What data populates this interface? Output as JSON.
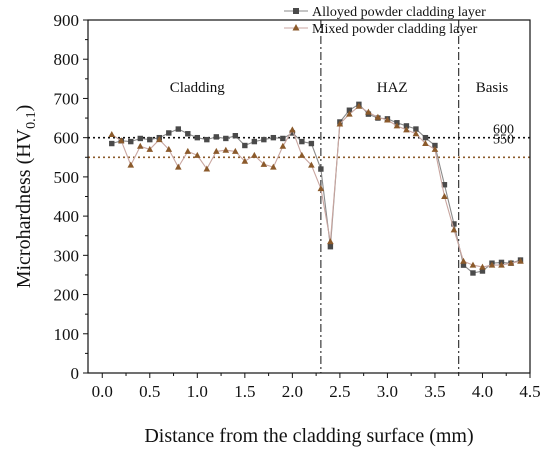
{
  "chart_data": {
    "type": "line",
    "xlabel": "Distance from the cladding surface (mm)",
    "ylabel_main": "Microhardness (HV",
    "ylabel_sub": "0.1",
    "ylabel_close": ")",
    "xlim": [
      -0.15,
      4.5
    ],
    "ylim": [
      0,
      900
    ],
    "xticks": [
      "0.0",
      "0.5",
      "1.0",
      "1.5",
      "2.0",
      "2.5",
      "3.0",
      "3.5",
      "4.0",
      "4.5"
    ],
    "yticks": [
      "0",
      "100",
      "200",
      "300",
      "400",
      "500",
      "600",
      "700",
      "800",
      "900"
    ],
    "regions": [
      {
        "label": "Cladding",
        "x_center": 1.0
      },
      {
        "label": "HAZ",
        "x_center": 3.05
      },
      {
        "label": "Basis",
        "x_center": 4.1
      }
    ],
    "boundaries": [
      2.3,
      3.75
    ],
    "reference_lines": [
      {
        "value": 600,
        "label": "600",
        "color": "#111111"
      },
      {
        "value": 550,
        "label": "550",
        "color": "#8b5a2b"
      }
    ],
    "series": [
      {
        "name": "Alloyed powder cladding layer",
        "marker": "square",
        "color": "#4a4a4a",
        "x": [
          0.1,
          0.2,
          0.3,
          0.4,
          0.5,
          0.6,
          0.7,
          0.8,
          0.9,
          1.0,
          1.1,
          1.2,
          1.3,
          1.4,
          1.5,
          1.6,
          1.7,
          1.8,
          1.9,
          2.0,
          2.1,
          2.2,
          2.3,
          2.4,
          2.5,
          2.6,
          2.7,
          2.8,
          2.9,
          3.0,
          3.1,
          3.2,
          3.3,
          3.4,
          3.5,
          3.6,
          3.7,
          3.8,
          3.9,
          4.0,
          4.1,
          4.2,
          4.3,
          4.4
        ],
        "values": [
          585,
          592,
          590,
          598,
          595,
          600,
          612,
          622,
          610,
          600,
          595,
          602,
          598,
          605,
          580,
          590,
          595,
          600,
          598,
          612,
          590,
          585,
          520,
          322,
          640,
          670,
          685,
          660,
          650,
          648,
          638,
          630,
          622,
          600,
          580,
          480,
          380,
          275,
          255,
          260,
          280,
          282,
          280,
          288
        ]
      },
      {
        "name": "Mixed  powder cladding layer",
        "marker": "triangle",
        "color": "#8b5a2b",
        "x": [
          0.1,
          0.2,
          0.3,
          0.4,
          0.5,
          0.6,
          0.7,
          0.8,
          0.9,
          1.0,
          1.1,
          1.2,
          1.3,
          1.4,
          1.5,
          1.6,
          1.7,
          1.8,
          1.9,
          2.0,
          2.1,
          2.2,
          2.3,
          2.4,
          2.5,
          2.6,
          2.7,
          2.8,
          2.9,
          3.0,
          3.1,
          3.2,
          3.3,
          3.4,
          3.5,
          3.6,
          3.7,
          3.8,
          3.9,
          4.0,
          4.1,
          4.2,
          4.3,
          4.4
        ],
        "values": [
          608,
          592,
          530,
          578,
          570,
          595,
          570,
          525,
          565,
          555,
          520,
          565,
          568,
          565,
          540,
          555,
          532,
          525,
          578,
          620,
          555,
          530,
          470,
          335,
          635,
          660,
          680,
          665,
          652,
          645,
          630,
          620,
          610,
          585,
          570,
          450,
          365,
          285,
          275,
          270,
          275,
          275,
          280,
          285
        ]
      }
    ]
  }
}
